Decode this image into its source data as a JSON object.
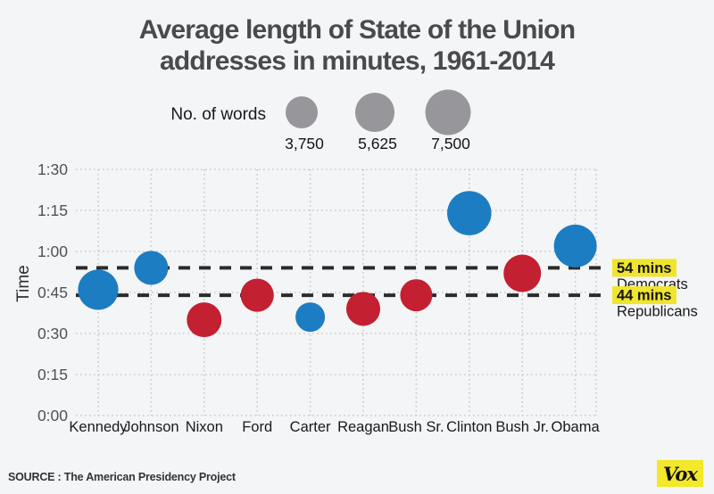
{
  "title": {
    "line1": "Average length of State of the Union",
    "line2": "addresses in minutes, 1961-2014"
  },
  "legend": {
    "label": "No. of words",
    "bubbles": [
      {
        "words": 3750,
        "label": "3,750"
      },
      {
        "words": 5625,
        "label": "5,625"
      },
      {
        "words": 7500,
        "label": "7,500"
      }
    ],
    "bubble_color": "#97979b"
  },
  "chart_data": {
    "type": "scatter",
    "subtype": "bubble",
    "title": "Average length of State of the Union addresses in minutes, 1961-2014",
    "xlabel": "",
    "ylabel": "Time",
    "ylim_minutes": [
      0,
      90
    ],
    "y_ticks": [
      {
        "label": "0:00",
        "minutes": 0
      },
      {
        "label": "0:15",
        "minutes": 15
      },
      {
        "label": "0:30",
        "minutes": 30
      },
      {
        "label": "0:45",
        "minutes": 45
      },
      {
        "label": "1:00",
        "minutes": 60
      },
      {
        "label": "1:15",
        "minutes": 75
      },
      {
        "label": "1:30",
        "minutes": 90
      }
    ],
    "grid": true,
    "categories": [
      "Kennedy",
      "Johnson",
      "Nixon",
      "Ford",
      "Carter",
      "Reagan",
      "Bush Sr.",
      "Clinton",
      "Bush Jr.",
      "Obama"
    ],
    "points": [
      {
        "president": "Kennedy",
        "party": "democrat",
        "minutes": 46,
        "words": 5900
      },
      {
        "president": "Johnson",
        "party": "democrat",
        "minutes": 54,
        "words": 4200
      },
      {
        "president": "Nixon",
        "party": "republican",
        "minutes": 35,
        "words": 4400
      },
      {
        "president": "Ford",
        "party": "republican",
        "minutes": 44,
        "words": 4000
      },
      {
        "president": "Carter",
        "party": "democrat",
        "minutes": 36,
        "words": 3150
      },
      {
        "president": "Reagan",
        "party": "republican",
        "minutes": 39,
        "words": 4200
      },
      {
        "president": "Bush Sr.",
        "party": "republican",
        "minutes": 44,
        "words": 3750
      },
      {
        "president": "Clinton",
        "party": "democrat",
        "minutes": 74,
        "words": 7100
      },
      {
        "president": "Bush Jr.",
        "party": "republican",
        "minutes": 52,
        "words": 5100
      },
      {
        "president": "Obama",
        "party": "democrat",
        "minutes": 62,
        "words": 6650
      }
    ],
    "annotations": [
      {
        "label": "54 mins",
        "sublabel": "Democrats",
        "minutes": 54
      },
      {
        "label": "44 mins",
        "sublabel": "Republicans",
        "minutes": 44
      }
    ],
    "colors": {
      "democrat": "#1d7dc2",
      "republican": "#c32032",
      "dash_line": "#2b2b2b",
      "gridline": "#c9c9ce",
      "highlight": "#f0e52e",
      "tick_text": "#515154",
      "label_text": "#19191b"
    }
  },
  "footer": {
    "source": "SOURCE : The American Presidency Project",
    "logo": "Vox"
  }
}
